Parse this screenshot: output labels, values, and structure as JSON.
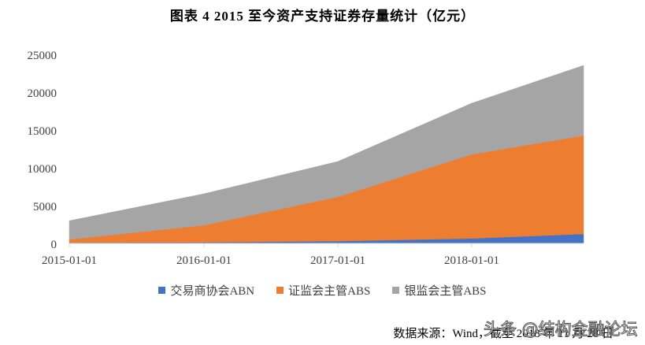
{
  "title": "图表  4 2015 至今资产支持证券存量统计（亿元）",
  "chart_data": {
    "type": "area",
    "stacked": true,
    "title": "图表 4 2015 至今资产支持证券存量统计（亿元）",
    "xlabel": "",
    "ylabel": "",
    "x": [
      "2015-01-01",
      "2016-01-01",
      "2017-01-01",
      "2018-01-01",
      "2018-11-28"
    ],
    "x_tick_labels": [
      "2015-01-01",
      "2016-01-01",
      "2017-01-01",
      "2018-01-01"
    ],
    "y_ticks": [
      0,
      5000,
      10000,
      15000,
      20000,
      25000
    ],
    "ylim": [
      0,
      25000
    ],
    "grid": false,
    "legend_position": "bottom",
    "series": [
      {
        "name": "交易商协会ABN",
        "color": "#4472C4",
        "values": [
          100,
          150,
          300,
          650,
          1250
        ]
      },
      {
        "name": "证监会主管ABS",
        "color": "#ED7D31",
        "values": [
          420,
          2250,
          5850,
          11120,
          13020
        ]
      },
      {
        "name": "银监会主管ABS",
        "color": "#A5A5A5",
        "values": [
          2480,
          4160,
          4680,
          6770,
          9270
        ]
      }
    ]
  },
  "legend": [
    {
      "label": "交易商协会ABN",
      "color": "#4472C4"
    },
    {
      "label": "证监会主管ABS",
      "color": "#ED7D31"
    },
    {
      "label": "银监会主管ABS",
      "color": "#A5A5A5"
    }
  ],
  "source": "数据来源：Wind，截至 2018 年 11 月 28 日",
  "watermark": "头条 @结构金融论坛"
}
